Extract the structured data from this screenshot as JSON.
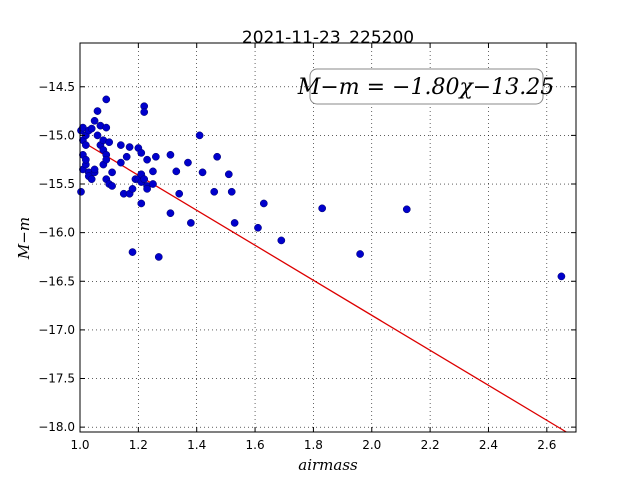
{
  "chart_data": {
    "type": "scatter",
    "title": "2021-11-23_225200",
    "xlabel": "airmass",
    "ylabel": "M−m",
    "xlim": [
      1.0,
      2.7
    ],
    "ylim": [
      -18.05,
      -14.05
    ],
    "x_ticks": [
      1.0,
      1.2,
      1.4,
      1.6,
      1.8,
      2.0,
      2.2,
      2.4,
      2.6
    ],
    "x_tick_labels": [
      "1.0",
      "1.2",
      "1.4",
      "1.6",
      "1.8",
      "2.0",
      "2.2",
      "2.4",
      "2.6"
    ],
    "y_ticks": [
      -14.5,
      -15.0,
      -15.5,
      -16.0,
      -16.5,
      -17.0,
      -17.5,
      -18.0
    ],
    "y_tick_labels": [
      "−14.5",
      "−15.0",
      "−15.5",
      "−16.0",
      "−16.5",
      "−17.0",
      "−17.5",
      "−18.0"
    ],
    "grid": true,
    "annotation": "M−m = −1.80χ−13.25",
    "fit_line": {
      "slope": -1.8,
      "intercept": -13.25,
      "color": "#dd0000"
    },
    "point_color": "#0000cc",
    "points": [
      [
        1.0,
        -15.58
      ],
      [
        1.0,
        -14.95
      ],
      [
        1.01,
        -15.2
      ],
      [
        1.01,
        -15.35
      ],
      [
        1.01,
        -14.92
      ],
      [
        1.01,
        -15.05
      ],
      [
        1.02,
        -15.3
      ],
      [
        1.02,
        -15.25
      ],
      [
        1.02,
        -15.0
      ],
      [
        1.02,
        -15.1
      ],
      [
        1.03,
        -15.38
      ],
      [
        1.03,
        -15.42
      ],
      [
        1.03,
        -14.95
      ],
      [
        1.04,
        -15.45
      ],
      [
        1.04,
        -14.93
      ],
      [
        1.05,
        -14.85
      ],
      [
        1.05,
        -15.38
      ],
      [
        1.05,
        -15.35
      ],
      [
        1.06,
        -14.75
      ],
      [
        1.06,
        -15.0
      ],
      [
        1.07,
        -15.1
      ],
      [
        1.07,
        -14.9
      ],
      [
        1.08,
        -15.15
      ],
      [
        1.08,
        -15.05
      ],
      [
        1.08,
        -15.3
      ],
      [
        1.09,
        -15.2
      ],
      [
        1.09,
        -14.92
      ],
      [
        1.09,
        -15.45
      ],
      [
        1.09,
        -15.25
      ],
      [
        1.09,
        -14.63
      ],
      [
        1.1,
        -15.07
      ],
      [
        1.1,
        -15.5
      ],
      [
        1.11,
        -15.38
      ],
      [
        1.11,
        -15.52
      ],
      [
        1.14,
        -15.1
      ],
      [
        1.14,
        -15.28
      ],
      [
        1.15,
        -15.6
      ],
      [
        1.16,
        -15.22
      ],
      [
        1.17,
        -15.12
      ],
      [
        1.17,
        -15.6
      ],
      [
        1.18,
        -15.55
      ],
      [
        1.18,
        -16.2
      ],
      [
        1.19,
        -15.45
      ],
      [
        1.2,
        -15.13
      ],
      [
        1.2,
        -15.45
      ],
      [
        1.21,
        -15.48
      ],
      [
        1.21,
        -15.18
      ],
      [
        1.21,
        -15.4
      ],
      [
        1.21,
        -15.7
      ],
      [
        1.22,
        -15.45
      ],
      [
        1.22,
        -14.7
      ],
      [
        1.22,
        -14.76
      ],
      [
        1.23,
        -15.52
      ],
      [
        1.23,
        -15.55
      ],
      [
        1.23,
        -15.25
      ],
      [
        1.25,
        -15.37
      ],
      [
        1.25,
        -15.5
      ],
      [
        1.26,
        -15.22
      ],
      [
        1.27,
        -16.25
      ],
      [
        1.31,
        -15.2
      ],
      [
        1.31,
        -15.8
      ],
      [
        1.33,
        -15.37
      ],
      [
        1.34,
        -15.6
      ],
      [
        1.37,
        -15.28
      ],
      [
        1.38,
        -15.9
      ],
      [
        1.41,
        -15.0
      ],
      [
        1.42,
        -15.38
      ],
      [
        1.46,
        -15.58
      ],
      [
        1.47,
        -15.22
      ],
      [
        1.51,
        -15.4
      ],
      [
        1.52,
        -15.58
      ],
      [
        1.53,
        -15.9
      ],
      [
        1.61,
        -15.95
      ],
      [
        1.63,
        -15.7
      ],
      [
        1.69,
        -16.08
      ],
      [
        1.83,
        -15.75
      ],
      [
        1.96,
        -16.22
      ],
      [
        2.12,
        -15.76
      ],
      [
        2.65,
        -16.45
      ]
    ]
  }
}
